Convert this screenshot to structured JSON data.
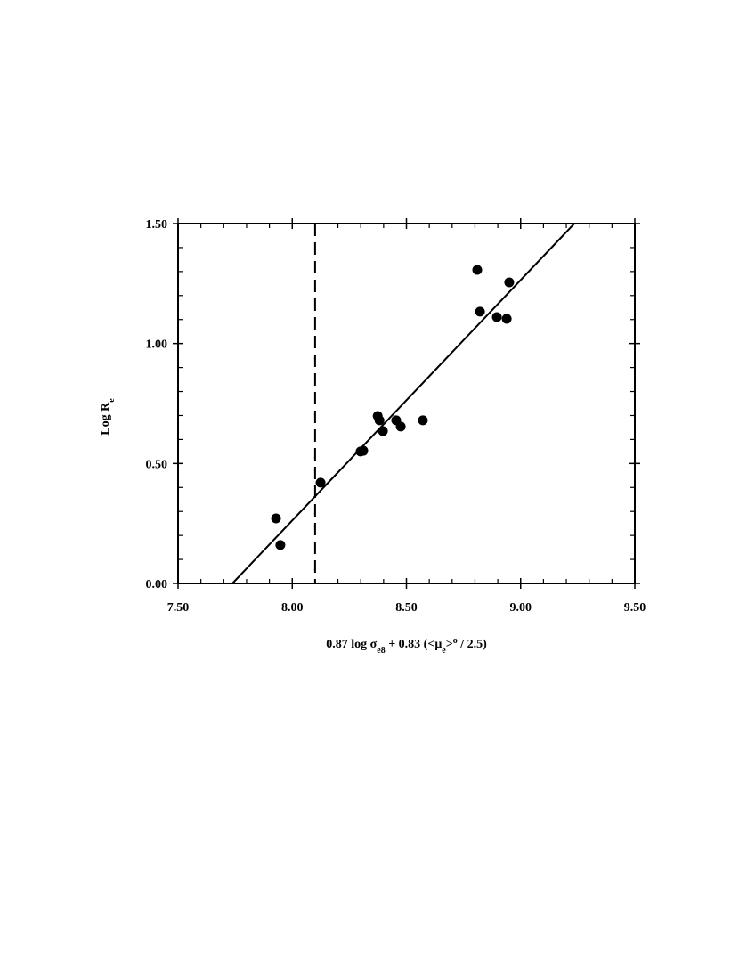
{
  "chart_data": {
    "type": "scatter",
    "xlabel": [
      {
        "text": "0.87 log σ"
      },
      {
        "sub": "e8"
      },
      {
        "text": " + 0.83 (<μ"
      },
      {
        "sub": "e"
      },
      {
        "text": ">"
      },
      {
        "sup": "o"
      },
      {
        "text": " / 2.5)"
      }
    ],
    "ylabel": [
      {
        "text": "Log R"
      },
      {
        "sub": "e"
      }
    ],
    "xlim": [
      7.5,
      9.5
    ],
    "ylim": [
      0,
      1.5
    ],
    "xticks": [
      {
        "value": 7.5,
        "label": "7.50"
      },
      {
        "value": 8,
        "label": "8.00"
      },
      {
        "value": 8.5,
        "label": "8.50"
      },
      {
        "value": 9,
        "label": "9.00"
      },
      {
        "value": 9.5,
        "label": "9.50"
      }
    ],
    "yticks": [
      {
        "value": 0,
        "label": "0.00"
      },
      {
        "value": 0.5,
        "label": "0.50"
      },
      {
        "value": 1,
        "label": "1.00"
      },
      {
        "value": 1.5,
        "label": "1.50"
      }
    ],
    "xminorticks": [
      7.6,
      7.7,
      7.8,
      7.9,
      8.1,
      8.2,
      8.3,
      8.4,
      8.6,
      8.7,
      8.8,
      8.9,
      9.1,
      9.2,
      9.3,
      9.4
    ],
    "yminorticks": [
      0.1,
      0.2,
      0.3,
      0.4,
      0.6,
      0.7,
      0.8,
      0.9,
      1.1,
      1.2,
      1.3,
      1.4
    ],
    "series": [
      {
        "color": "#000000",
        "x": [
          7.929,
          7.948,
          8.124,
          8.299,
          8.311,
          8.374,
          8.382,
          8.397,
          8.455,
          8.475,
          8.572,
          8.81,
          8.822,
          8.896,
          8.939,
          8.95
        ],
        "y": [
          0.271,
          0.16,
          0.42,
          0.55,
          0.553,
          0.698,
          0.68,
          0.635,
          0.68,
          0.654,
          0.68,
          1.307,
          1.133,
          1.11,
          1.103,
          1.255
        ]
      }
    ],
    "fit": {
      "x": [
        7.738,
        9.235
      ],
      "y": [
        0,
        1.5
      ]
    },
    "vline": 8.1
  }
}
